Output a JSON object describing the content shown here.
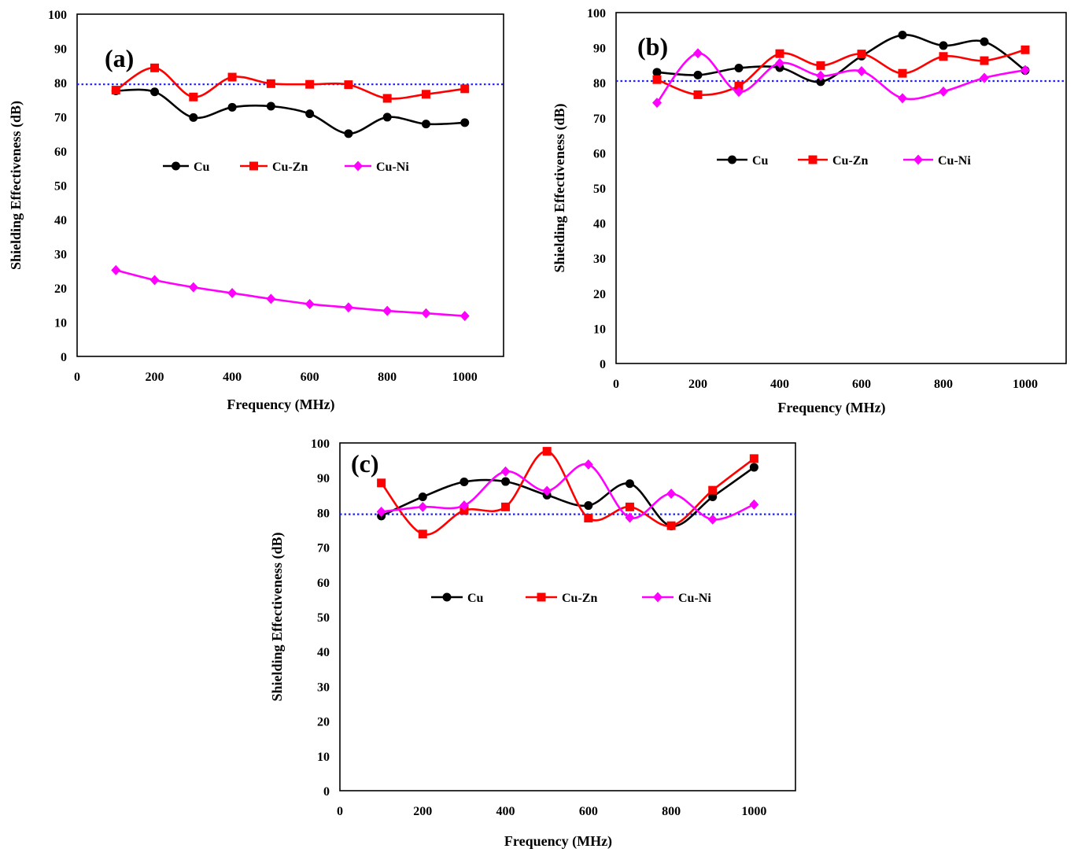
{
  "chart_data": [
    {
      "type": "line",
      "panel_label": "(a)",
      "xlabel": "Frequency (MHz)",
      "ylabel": "Shielding  Effectiveness (dB)",
      "xlim": [
        0,
        1100
      ],
      "ylim": [
        0,
        100
      ],
      "xticks": [
        0,
        200,
        400,
        600,
        800,
        1000
      ],
      "yticks": [
        0,
        10,
        20,
        30,
        40,
        50,
        60,
        70,
        80,
        90,
        100
      ],
      "reference_line": 79.5,
      "x": [
        100,
        200,
        300,
        400,
        500,
        600,
        700,
        800,
        900,
        1000
      ],
      "series": [
        {
          "name": "Cu",
          "color": "#000000",
          "marker": "circle",
          "values": [
            77.6,
            77.3,
            69.8,
            72.8,
            73.1,
            70.9,
            65.1,
            69.9,
            67.9,
            68.3
          ]
        },
        {
          "name": "Cu-Zn",
          "color": "#ff0000",
          "marker": "square",
          "values": [
            77.8,
            84.3,
            75.8,
            81.6,
            79.7,
            79.5,
            79.4,
            75.4,
            76.6,
            78.2
          ]
        },
        {
          "name": "Cu-Ni",
          "color": "#ff00ff",
          "marker": "diamond",
          "values": [
            25.2,
            22.3,
            20.2,
            18.5,
            16.8,
            15.3,
            14.3,
            13.3,
            12.6,
            11.8
          ]
        }
      ]
    },
    {
      "type": "line",
      "panel_label": "(b)",
      "xlabel": "Frequency (MHz)",
      "ylabel": "Shielding  Effectiveness (dB)",
      "xlim": [
        0,
        1100
      ],
      "ylim": [
        0,
        100
      ],
      "xticks": [
        0,
        200,
        400,
        600,
        800,
        1000
      ],
      "yticks": [
        0,
        10,
        20,
        30,
        40,
        50,
        60,
        70,
        80,
        90,
        100
      ],
      "reference_line": 80.5,
      "x": [
        100,
        200,
        300,
        400,
        500,
        600,
        700,
        800,
        900,
        1000
      ],
      "series": [
        {
          "name": "Cu",
          "color": "#000000",
          "marker": "circle",
          "values": [
            83.0,
            82.2,
            84.2,
            84.3,
            80.3,
            87.6,
            93.6,
            90.6,
            91.7,
            83.5
          ]
        },
        {
          "name": "Cu-Zn",
          "color": "#ff0000",
          "marker": "square",
          "values": [
            80.9,
            76.6,
            79.1,
            88.3,
            84.9,
            88.2,
            82.7,
            87.5,
            86.3,
            89.4
          ]
        },
        {
          "name": "Cu-Ni",
          "color": "#ff00ff",
          "marker": "diamond",
          "values": [
            74.3,
            88.4,
            77.4,
            85.6,
            82.0,
            83.3,
            75.6,
            77.5,
            81.4,
            83.6
          ]
        }
      ]
    },
    {
      "type": "line",
      "panel_label": "(c)",
      "xlabel": "Frequency (MHz)",
      "ylabel": "Shielding  Effectiveness (dB)",
      "xlim": [
        0,
        1100
      ],
      "ylim": [
        0,
        100
      ],
      "xticks": [
        0,
        200,
        400,
        600,
        800,
        1000
      ],
      "yticks": [
        0,
        10,
        20,
        30,
        40,
        50,
        60,
        70,
        80,
        90,
        100
      ],
      "reference_line": 79.5,
      "x": [
        100,
        200,
        300,
        400,
        500,
        600,
        700,
        800,
        900,
        1000
      ],
      "series": [
        {
          "name": "Cu",
          "color": "#000000",
          "marker": "circle",
          "values": [
            79.0,
            84.5,
            88.8,
            88.9,
            85.0,
            82.0,
            88.3,
            76.1,
            84.5,
            93.0
          ]
        },
        {
          "name": "Cu-Zn",
          "color": "#ff0000",
          "marker": "square",
          "values": [
            88.5,
            73.8,
            80.6,
            81.6,
            97.6,
            78.4,
            81.6,
            76.2,
            86.4,
            95.5
          ]
        },
        {
          "name": "Cu-Ni",
          "color": "#ff00ff",
          "marker": "diamond",
          "values": [
            80.2,
            81.6,
            82.0,
            91.8,
            86.2,
            93.8,
            78.5,
            85.4,
            78.0,
            82.3
          ]
        }
      ]
    }
  ]
}
